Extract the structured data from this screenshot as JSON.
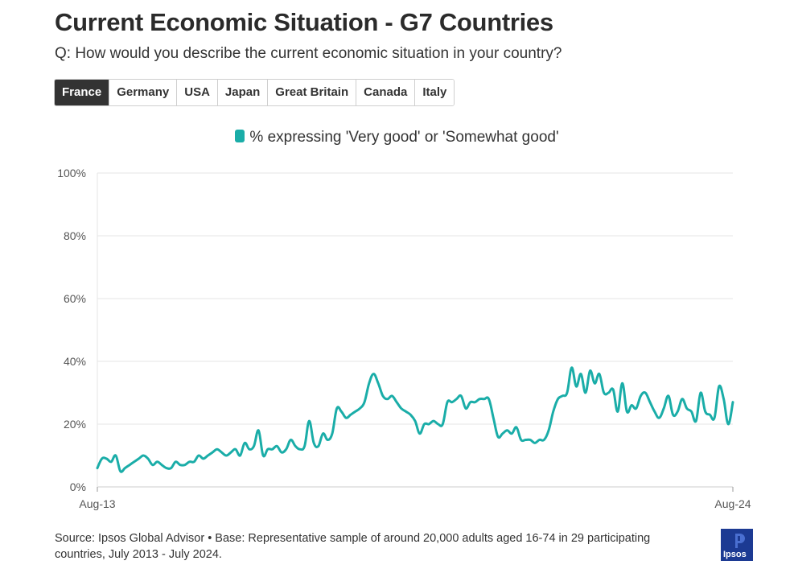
{
  "header": {
    "title": "Current Economic Situation - G7 Countries",
    "subtitle": "Q: How would you describe the current economic situation in your country?"
  },
  "tabs": [
    {
      "label": "France",
      "active": true
    },
    {
      "label": "Germany",
      "active": false
    },
    {
      "label": "USA",
      "active": false
    },
    {
      "label": "Japan",
      "active": false
    },
    {
      "label": "Great Britain",
      "active": false
    },
    {
      "label": "Canada",
      "active": false
    },
    {
      "label": "Italy",
      "active": false
    }
  ],
  "footer": {
    "source": "Source: Ipsos Global Advisor • Base: Representative sample of around 20,000 adults aged 16-74 in 29 participating countries, July 2013 - July 2024.",
    "logo_text": "Ipsos"
  },
  "colors": {
    "series": "#1aada8",
    "tab_active_bg": "#333333",
    "grid": "#e6e6e6",
    "logo_bg": "#1c3a93"
  },
  "chart_data": {
    "type": "line",
    "title": "",
    "xlabel": "",
    "ylabel": "",
    "ylim": [
      0,
      100
    ],
    "yticks": [
      0,
      20,
      40,
      60,
      80,
      100
    ],
    "ytick_labels": [
      "0%",
      "20%",
      "40%",
      "60%",
      "80%",
      "100%"
    ],
    "xticks": [
      "Aug-13",
      "Aug-24"
    ],
    "x_start": "Aug-13",
    "x_end": "Aug-24",
    "grid": true,
    "legend_placement": "top-center",
    "series": [
      {
        "name": "% expressing 'Very good' or 'Somewhat good'",
        "values": [
          6,
          9,
          9,
          8,
          10,
          5,
          6,
          7,
          8,
          9,
          10,
          9,
          7,
          8,
          7,
          6,
          6,
          8,
          7,
          7,
          8,
          8,
          10,
          9,
          10,
          11,
          12,
          11,
          10,
          11,
          12,
          10,
          14,
          12,
          13,
          18,
          10,
          12,
          12,
          13,
          11,
          12,
          15,
          13,
          12,
          13,
          21,
          14,
          13,
          17,
          15,
          17,
          25,
          24,
          22,
          23,
          24,
          25,
          27,
          33,
          36,
          33,
          29,
          28,
          29,
          27,
          25,
          24,
          23,
          21,
          17,
          20,
          20,
          21,
          20,
          20,
          27,
          27,
          28,
          29,
          25,
          27,
          27,
          28,
          28,
          28,
          22,
          16,
          17,
          18,
          17,
          19,
          15,
          15,
          15,
          14,
          15,
          15,
          18,
          24,
          28,
          29,
          30,
          38,
          32,
          36,
          30,
          37,
          33,
          36,
          30,
          30,
          31,
          24,
          33,
          24,
          26,
          25,
          29,
          30,
          27,
          24,
          22,
          25,
          29,
          23,
          24,
          28,
          25,
          24,
          21,
          30,
          24,
          23,
          22,
          32,
          28,
          20,
          27
        ]
      }
    ]
  }
}
